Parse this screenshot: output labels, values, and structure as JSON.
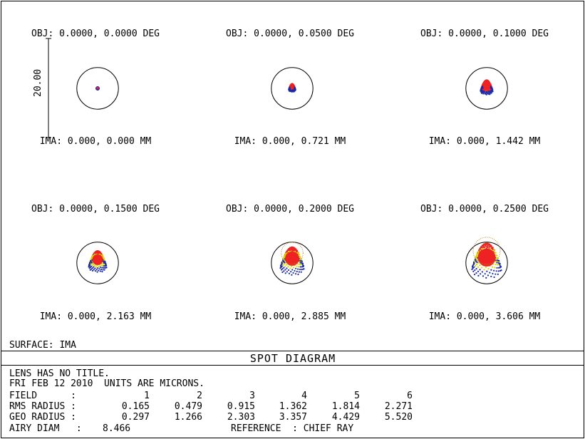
{
  "chart_data": {
    "type": "scatter",
    "title": "SPOT DIAGRAM",
    "scale_bar_label": "20.00",
    "fields": [
      {
        "obj": "OBJ: 0.0000, 0.0000 DEG",
        "ima": "IMA: 0.000, 0.000 MM",
        "rms_radius": 0.165,
        "geo_radius": 0.297
      },
      {
        "obj": "OBJ: 0.0000, 0.0500 DEG",
        "ima": "IMA: 0.000, 0.721 MM",
        "rms_radius": 0.479,
        "geo_radius": 1.266
      },
      {
        "obj": "OBJ: 0.0000, 0.1000 DEG",
        "ima": "IMA: 0.000, 1.442 MM",
        "rms_radius": 0.915,
        "geo_radius": 2.303
      },
      {
        "obj": "OBJ: 0.0000, 0.1500 DEG",
        "ima": "IMA: 0.000, 2.163 MM",
        "rms_radius": 1.362,
        "geo_radius": 3.357
      },
      {
        "obj": "OBJ: 0.0000, 0.2000 DEG",
        "ima": "IMA: 0.000, 2.885 MM",
        "rms_radius": 1.814,
        "geo_radius": 4.429
      },
      {
        "obj": "OBJ: 0.0000, 0.2500 DEG",
        "ima": "IMA: 0.000, 3.606 MM",
        "rms_radius": 2.271,
        "geo_radius": 5.52
      }
    ],
    "airy_diameter": 8.466,
    "series_colors": [
      "#1a2aa8",
      "#d4d400",
      "#ee2222",
      "#b8862a"
    ]
  },
  "surface_label": "SURFACE: IMA",
  "info": {
    "line1": "LENS HAS NO TITLE.",
    "line2": "FRI FEB 12 2010  UNITS ARE MICRONS.",
    "field_label": "FIELD      :",
    "field_nums": [
      "1",
      "2",
      "3",
      "4",
      "5",
      "6"
    ],
    "rms_label": "RMS RADIUS :",
    "rms_values": [
      "0.165",
      "0.479",
      "0.915",
      "1.362",
      "1.814",
      "2.271"
    ],
    "geo_label": "GEO RADIUS :",
    "geo_values": [
      "0.297",
      "1.266",
      "2.303",
      "3.357",
      "4.429",
      "5.520"
    ],
    "airy_label": "AIRY DIAM   :",
    "airy_value": "8.466",
    "reference_label": "REFERENCE  : CHIEF RAY"
  }
}
